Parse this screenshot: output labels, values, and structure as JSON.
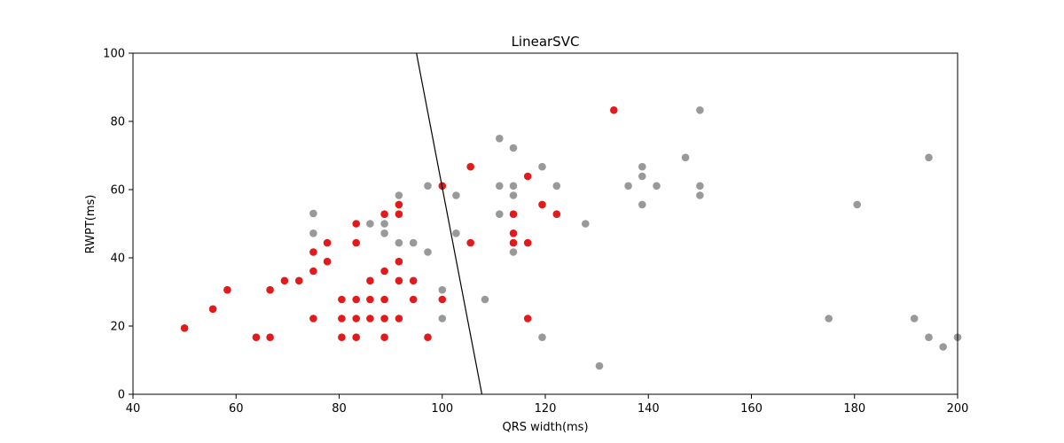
{
  "chart_data": {
    "type": "scatter",
    "title": "LinearSVC",
    "xlabel": "QRS width(ms)",
    "ylabel": "RWPT(ms)",
    "xlim": [
      40,
      200
    ],
    "ylim": [
      0,
      100
    ],
    "xticks": [
      40,
      60,
      80,
      100,
      120,
      140,
      160,
      180,
      200
    ],
    "yticks": [
      0,
      20,
      40,
      60,
      80,
      100
    ],
    "grid": false,
    "colors": {
      "red": "#e31a1c",
      "gray": "#999999",
      "line": "#000000"
    },
    "decision_boundary": [
      [
        95.0,
        100
      ],
      [
        107.7,
        0
      ]
    ],
    "series": [
      {
        "color": "#999999",
        "points": [
          [
            75,
            53
          ],
          [
            75,
            47.2
          ],
          [
            86,
            50
          ],
          [
            88.8,
            50
          ],
          [
            88.8,
            47.2
          ],
          [
            91.6,
            58.3
          ],
          [
            91.6,
            44.4
          ],
          [
            94.4,
            44.4
          ],
          [
            97.2,
            61.1
          ],
          [
            97.2,
            41.7
          ],
          [
            102.7,
            58.3
          ],
          [
            102.7,
            47.2
          ],
          [
            100,
            30.6
          ],
          [
            100,
            22.2
          ],
          [
            108.3,
            27.8
          ],
          [
            111.1,
            75
          ],
          [
            111.1,
            61.1
          ],
          [
            111.1,
            52.8
          ],
          [
            113.8,
            72.2
          ],
          [
            113.8,
            61.1
          ],
          [
            113.8,
            58.3
          ],
          [
            113.8,
            41.7
          ],
          [
            119.4,
            66.7
          ],
          [
            119.4,
            16.7
          ],
          [
            122.2,
            61.1
          ],
          [
            127.8,
            50
          ],
          [
            130.5,
            8.3
          ],
          [
            136.1,
            61.1
          ],
          [
            138.8,
            66.7
          ],
          [
            138.8,
            63.9
          ],
          [
            138.8,
            55.6
          ],
          [
            141.6,
            61.1
          ],
          [
            147.2,
            69.4
          ],
          [
            150,
            83.3
          ],
          [
            150,
            61.1
          ],
          [
            150,
            58.3
          ],
          [
            175,
            22.2
          ],
          [
            180.5,
            55.6
          ],
          [
            191.6,
            22.2
          ],
          [
            194.4,
            69.4
          ],
          [
            194.4,
            16.7
          ],
          [
            197.2,
            13.9
          ],
          [
            200,
            16.7
          ]
        ]
      },
      {
        "color": "#e31a1c",
        "points": [
          [
            50,
            19.4
          ],
          [
            55.5,
            25
          ],
          [
            58.3,
            30.6
          ],
          [
            63.9,
            16.7
          ],
          [
            66.6,
            16.7
          ],
          [
            66.6,
            30.6
          ],
          [
            69.4,
            33.3
          ],
          [
            72.2,
            33.3
          ],
          [
            75,
            41.7
          ],
          [
            75,
            36.1
          ],
          [
            75,
            22.2
          ],
          [
            77.7,
            44.4
          ],
          [
            77.7,
            38.9
          ],
          [
            80.5,
            27.8
          ],
          [
            80.5,
            22.2
          ],
          [
            80.5,
            16.7
          ],
          [
            83.3,
            50
          ],
          [
            83.3,
            44.4
          ],
          [
            83.3,
            27.8
          ],
          [
            83.3,
            22.2
          ],
          [
            83.3,
            16.7
          ],
          [
            86,
            33.3
          ],
          [
            86,
            27.8
          ],
          [
            86,
            22.2
          ],
          [
            88.8,
            52.8
          ],
          [
            88.8,
            36.1
          ],
          [
            88.8,
            27.8
          ],
          [
            88.8,
            22.2
          ],
          [
            88.8,
            16.7
          ],
          [
            91.6,
            55.6
          ],
          [
            91.6,
            52.8
          ],
          [
            91.6,
            38.9
          ],
          [
            91.6,
            33.3
          ],
          [
            91.6,
            22.2
          ],
          [
            94.4,
            33.3
          ],
          [
            94.4,
            27.8
          ],
          [
            97.2,
            16.7
          ],
          [
            100,
            61.1
          ],
          [
            100,
            27.8
          ],
          [
            105.5,
            66.7
          ],
          [
            105.5,
            44.4
          ],
          [
            113.8,
            52.8
          ],
          [
            113.8,
            47.2
          ],
          [
            113.8,
            44.4
          ],
          [
            116.6,
            63.9
          ],
          [
            116.6,
            44.4
          ],
          [
            116.6,
            22.2
          ],
          [
            119.4,
            55.6
          ],
          [
            122.2,
            52.8
          ],
          [
            133.3,
            83.3
          ]
        ]
      }
    ]
  }
}
